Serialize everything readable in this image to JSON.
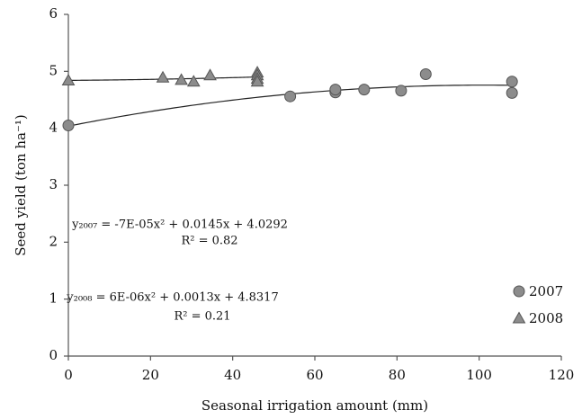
{
  "chart_data": {
    "type": "scatter",
    "xlabel": "Seasonal irrigation amount (mm)",
    "ylabel": "Seed yield (ton ha⁻¹)",
    "xlim": [
      0,
      120
    ],
    "xticks": [
      0,
      20,
      40,
      60,
      80,
      100,
      120
    ],
    "ylim": [
      0,
      6
    ],
    "yticks": [
      0,
      1,
      2,
      3,
      4,
      5,
      6
    ],
    "grid": false,
    "legend": "lower right",
    "trendline_degree": 2,
    "annotations": [
      "y₂₀₀₇ = -7E-05x² + 0.0145x + 4.0292",
      "R² = 0.82",
      "y₂₀₀₈ = 6E-06x² + 0.0013x + 4.8317",
      "R² = 0.21"
    ],
    "series": [
      {
        "name": "2007",
        "color": "#8c8c8c",
        "marker": "circle",
        "x": [
          0,
          54,
          65,
          65,
          72,
          81,
          87,
          108,
          108
        ],
        "values": [
          4.05,
          4.56,
          4.63,
          4.68,
          4.68,
          4.66,
          4.95,
          4.82,
          4.62
        ]
      },
      {
        "name": "2008",
        "color": "#8c8c8c",
        "marker": "triangle",
        "x": [
          0,
          23,
          27.5,
          30.5,
          34.5,
          46,
          46,
          46,
          46
        ],
        "values": [
          4.84,
          4.89,
          4.85,
          4.82,
          4.93,
          4.98,
          4.93,
          4.87,
          4.82
        ]
      }
    ]
  }
}
